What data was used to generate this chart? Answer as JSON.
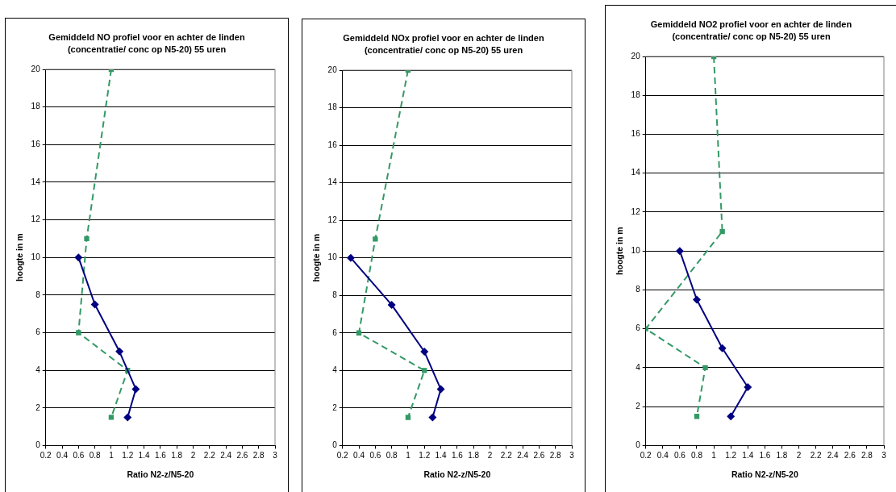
{
  "chart_data": [
    {
      "type": "line",
      "title": "Gemiddeld NO profiel voor en achter de linden (concentratie/ conc op N5-20) 55 uren",
      "xlabel": "Ratio N2-z/N5-20",
      "ylabel": "hoogte in m",
      "xlim": [
        0.2,
        3
      ],
      "xticks": [
        0.2,
        0.4,
        0.6,
        0.8,
        1,
        1.2,
        1.4,
        1.6,
        1.8,
        2,
        2.2,
        2.4,
        2.6,
        2.8,
        3
      ],
      "ylim": [
        0,
        20
      ],
      "yticks": [
        0,
        2,
        4,
        6,
        8,
        10,
        12,
        14,
        16,
        18,
        20
      ],
      "grid": "y",
      "legend": false,
      "series": [
        {
          "color": "#000080",
          "marker": "diamond",
          "line_style": "solid",
          "x": [
            0.6,
            0.8,
            1.1,
            1.3,
            1.2
          ],
          "values": [
            10,
            7.5,
            5,
            3,
            1.5
          ]
        },
        {
          "color": "#339966",
          "marker": "square",
          "line_style": "dashed",
          "x": [
            1.0,
            0.7,
            0.6,
            1.2,
            1.0
          ],
          "values": [
            20,
            11,
            6,
            4,
            1.5
          ]
        }
      ]
    },
    {
      "type": "line",
      "title": "Gemiddeld NOx profiel voor en achter de linden (concentratie/ conc op N5-20) 55 uren",
      "xlabel": "Ratio N2-z/N5-20",
      "ylabel": "hoogte in m",
      "xlim": [
        0.2,
        3
      ],
      "xticks": [
        0.2,
        0.4,
        0.6,
        0.8,
        1,
        1.2,
        1.4,
        1.6,
        1.8,
        2,
        2.2,
        2.4,
        2.6,
        2.8,
        3
      ],
      "ylim": [
        0,
        20
      ],
      "yticks": [
        0,
        2,
        4,
        6,
        8,
        10,
        12,
        14,
        16,
        18,
        20
      ],
      "grid": "y",
      "legend": false,
      "series": [
        {
          "color": "#000080",
          "marker": "diamond",
          "line_style": "solid",
          "x": [
            0.3,
            0.8,
            1.2,
            1.4,
            1.3
          ],
          "values": [
            10,
            7.5,
            5,
            3,
            1.5
          ]
        },
        {
          "color": "#339966",
          "marker": "square",
          "line_style": "dashed",
          "x": [
            1.0,
            0.6,
            0.4,
            1.2,
            1.0
          ],
          "values": [
            20,
            11,
            6,
            4,
            1.5
          ]
        }
      ]
    },
    {
      "type": "line",
      "title": "Gemiddeld NO2 profiel voor en achter de linden (concentratie/ conc op N5-20) 55 uren",
      "xlabel": "Ratio N2-z/N5-20",
      "ylabel": "hoogte in m",
      "xlim": [
        0.2,
        3
      ],
      "xticks": [
        0.2,
        0.4,
        0.6,
        0.8,
        1,
        1.2,
        1.4,
        1.6,
        1.8,
        2,
        2.2,
        2.4,
        2.6,
        2.8,
        3
      ],
      "ylim": [
        0,
        20
      ],
      "yticks": [
        0,
        2,
        4,
        6,
        8,
        10,
        12,
        14,
        16,
        18,
        20
      ],
      "grid": "y",
      "legend": false,
      "series": [
        {
          "color": "#000080",
          "marker": "diamond",
          "line_style": "solid",
          "x": [
            0.6,
            0.8,
            1.1,
            1.4,
            1.2
          ],
          "values": [
            10,
            7.5,
            5,
            3,
            1.5
          ]
        },
        {
          "color": "#339966",
          "marker": "square",
          "line_style": "dashed",
          "x": [
            1.0,
            1.1,
            0.2,
            0.9,
            0.8
          ],
          "values": [
            20,
            11,
            6,
            4,
            1.5
          ]
        }
      ]
    }
  ]
}
